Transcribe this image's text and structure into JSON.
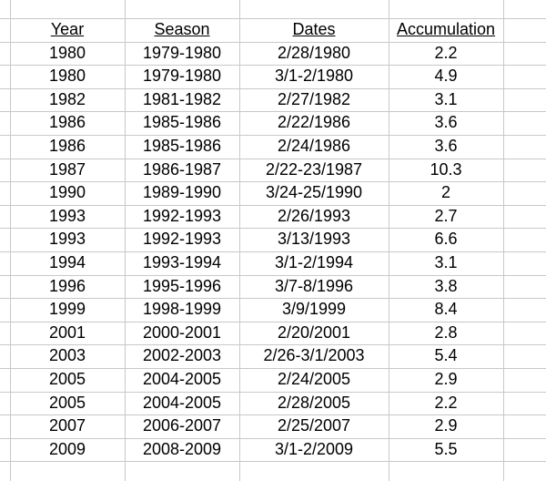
{
  "table": {
    "header": [
      "Year",
      "Season",
      "Dates",
      "Accumulation"
    ],
    "rows": [
      [
        "1980",
        "1979-1980",
        "2/28/1980",
        2.2
      ],
      [
        "1980",
        "1979-1980",
        "3/1-2/1980",
        4.9
      ],
      [
        "1982",
        "1981-1982",
        "2/27/1982",
        3.1
      ],
      [
        "1986",
        "1985-1986",
        "2/22/1986",
        3.6
      ],
      [
        "1986",
        "1985-1986",
        "2/24/1986",
        3.6
      ],
      [
        "1987",
        "1986-1987",
        "2/22-23/1987",
        10.3
      ],
      [
        "1990",
        "1989-1990",
        "3/24-25/1990",
        2
      ],
      [
        "1993",
        "1992-1993",
        "2/26/1993",
        2.7
      ],
      [
        "1993",
        "1992-1993",
        "3/13/1993",
        6.6
      ],
      [
        "1994",
        "1993-1994",
        "3/1-2/1994",
        3.1
      ],
      [
        "1996",
        "1995-1996",
        "3/7-8/1996",
        3.8
      ],
      [
        "1999",
        "1998-1999",
        "3/9/1999",
        8.4
      ],
      [
        "2001",
        "2000-2001",
        "2/20/2001",
        2.8
      ],
      [
        "2003",
        "2002-2003",
        "2/26-3/1/2003",
        5.4
      ],
      [
        "2005",
        "2004-2005",
        "2/24/2005",
        2.9
      ],
      [
        "2005",
        "2004-2005",
        "2/28/2005",
        2.2
      ],
      [
        "2007",
        "2006-2007",
        "2/25/2007",
        2.9
      ],
      [
        "2009",
        "2008-2009",
        "3/1-2/2009",
        5.5
      ]
    ]
  }
}
